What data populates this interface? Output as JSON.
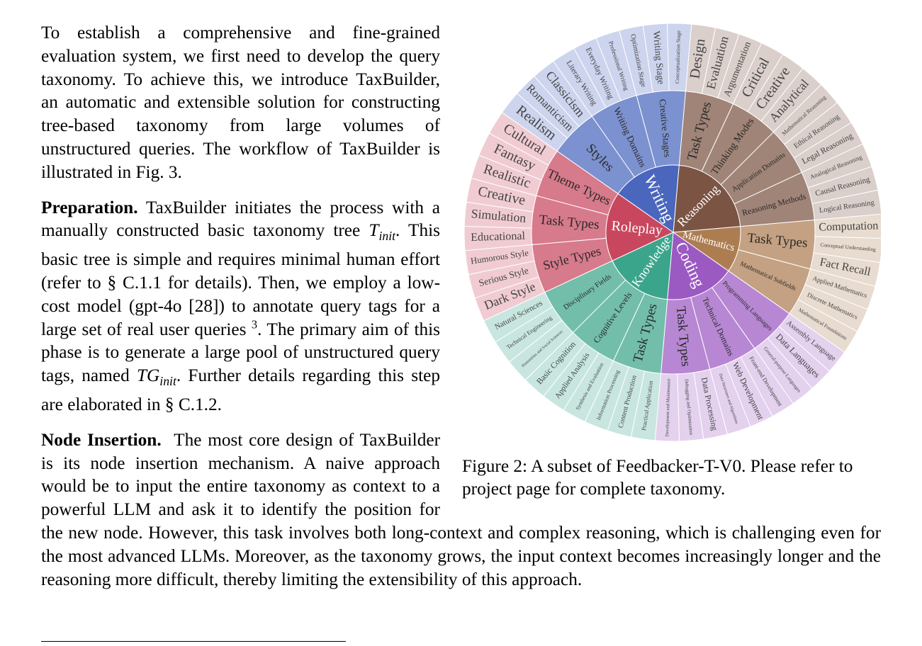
{
  "body": {
    "p1": "To establish a comprehensive and fine-grained evaluation system, we first need to develop the query taxonomy. To achieve this, we introduce TaxBuilder, an automatic and extensible solution for constructing tree-based taxonomy from large volumes of unstructured queries. The workflow of TaxBuilder is illustrated in Fig. 3.",
    "p2": {
      "heading": "Preparation.",
      "t1": "TaxBuilder initiates the process with a manually constructed basic taxonomy tree",
      "math1": {
        "base": "T",
        "sub": "init"
      },
      "t2": ". This basic tree is simple and requires minimal human effort (refer to § C.1.1 for details). Then, we employ a low-cost model (gpt-4o [28]) to annotate query tags for a large set of real user queries",
      "footnote": "3",
      "t3": ". The primary aim of this phase is to generate a large pool of unstructured query tags, named",
      "math2": {
        "base": "TG",
        "sub": "init"
      },
      "t4": ". Further details regarding this step are elaborated in § C.1.2."
    },
    "p3": {
      "heading": "Node Insertion.",
      "text": "The most core design of TaxBuilder is its node insertion mechanism. A naive approach would be to input the entire taxonomy as context to a powerful LLM and ask it to identify the position for the new node. However, this task involves both long-context and complex reasoning, which is challenging even for the most advanced LLMs. Moreover, as the taxonomy grows, the input context becomes increasingly longer and the reasoning more difficult, thereby limiting the extensibility of this approach."
    }
  },
  "figure": {
    "caption": "Figure 2: A subset of Feedbacker-T-V0. Please refer to project page for complete taxonomy.",
    "nodes": [
      {
        "label": "Reasoning",
        "color": "#7b5443",
        "children": [
          {
            "label": "Task Types",
            "children": [
              "Design",
              "Evaluation",
              "Argumentation"
            ]
          },
          {
            "label": "Thinking Modes",
            "children": [
              "Critical",
              "Creative",
              "Analytical"
            ]
          },
          {
            "label": "Application Domains",
            "children": [
              "Mathematical Reasoning",
              "Ethical Reasoning",
              "Legal Reasoning"
            ]
          },
          {
            "label": "Reasoning Methods",
            "children": [
              "Analogical Reasoning",
              "Causal Reasoning",
              "Logical Reasoning"
            ]
          }
        ]
      },
      {
        "label": "Mathematics",
        "color": "#ad7d52",
        "children": [
          {
            "label": "Task Types",
            "children": [
              "Computation",
              "Conceptual Understanding",
              "Fact Recall"
            ]
          },
          {
            "label": "Mathematical Subfields",
            "children": [
              "Applied Mathematics",
              "Discrete Mathematics",
              "Mathematical Foundations"
            ]
          }
        ]
      },
      {
        "label": "Coding",
        "color": "#9b59c2",
        "children": [
          {
            "label": "Programming Languages",
            "children": [
              "Assembly Language",
              "Data Languages",
              "General-purpose Languages"
            ]
          },
          {
            "label": "Technical Domains",
            "children": [
              "Front-end Development",
              "Web Development",
              "Data Structures and Algorithms"
            ]
          },
          {
            "label": "Task Types",
            "children": [
              "Data Processing",
              "Debugging and Optimization",
              "Development and Maintenance"
            ]
          }
        ]
      },
      {
        "label": "Knowledge",
        "color": "#3ba58b",
        "children": [
          {
            "label": "Task Types",
            "children": [
              "Practical Application",
              "Content Production",
              "Information Processing"
            ]
          },
          {
            "label": "Cognitive Levels",
            "children": [
              "Synthesis and Evaluation",
              "Applied Analysis",
              "Basic Cognition"
            ]
          },
          {
            "label": "Disciplinary Fields",
            "children": [
              "Humanities and Social Sciences",
              "Technical Engineering",
              "Natural Sciences"
            ]
          }
        ]
      },
      {
        "label": "Roleplay",
        "color": "#c8475e",
        "children": [
          {
            "label": "Style Types",
            "children": [
              "Dark Style",
              "Serious Style",
              "Humorous Style"
            ]
          },
          {
            "label": "Task Types",
            "children": [
              "Educational",
              "Simulation",
              "Creative"
            ]
          },
          {
            "label": "Theme Types",
            "children": [
              "Realistic",
              "Fantasy",
              "Cultural"
            ]
          }
        ]
      },
      {
        "label": "Writing",
        "color": "#4a66bd",
        "children": [
          {
            "label": "Styles",
            "children": [
              "Realism",
              "Romanticism",
              "Classicism"
            ]
          },
          {
            "label": "Writing Domains",
            "children": [
              "Literary Writing",
              "Everyday Writing",
              "Professional Writing"
            ]
          },
          {
            "label": "Creative Stages",
            "children": [
              "Optimization Stage",
              "Writing Stage",
              "Conceptualization Stage"
            ]
          }
        ]
      }
    ]
  }
}
